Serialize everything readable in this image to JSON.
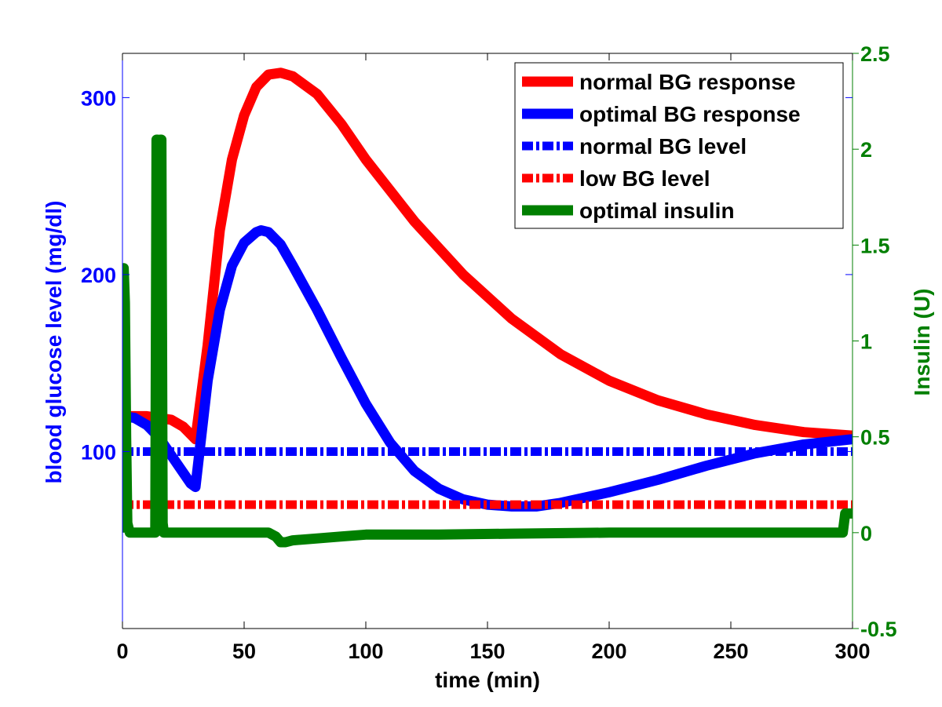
{
  "chart_data": {
    "type": "line",
    "xlabel": "time (min)",
    "ylabel_left": "blood glucose level (mg/dl)",
    "ylabel_right": "Insulin (U)",
    "xlim": [
      0,
      300
    ],
    "ylim_left": [
      0,
      325
    ],
    "ylim_right": [
      -0.5,
      2.5
    ],
    "x_ticks": [
      0,
      50,
      100,
      150,
      200,
      250,
      300
    ],
    "y_left_ticks": [
      100,
      200,
      300
    ],
    "y_right_ticks": [
      -0.5,
      0,
      0.5,
      1,
      1.5,
      2,
      2.5
    ],
    "y_right_tick_labels": [
      "-0.5",
      "0",
      "0.5",
      "1",
      "1.5",
      "2",
      "2.5"
    ],
    "grid": false,
    "legend_position": "top-right",
    "colors": {
      "left_axis": "#0000ff",
      "right_axis": "#007f00",
      "red": "#ff0000",
      "blue": "#0000ff",
      "green": "#007f00"
    },
    "series": [
      {
        "name": "normal BG response",
        "axis": "left",
        "style": "solid",
        "color": "#ff0000",
        "x": [
          0,
          10,
          20,
          25,
          30,
          35,
          40,
          45,
          50,
          55,
          60,
          65,
          70,
          80,
          90,
          100,
          120,
          140,
          160,
          180,
          200,
          220,
          240,
          260,
          280,
          300
        ],
        "y": [
          120,
          120,
          118,
          114,
          107,
          160,
          225,
          265,
          290,
          306,
          313,
          314,
          312,
          302,
          285,
          265,
          230,
          200,
          175,
          155,
          140,
          129,
          121,
          115,
          111,
          109
        ]
      },
      {
        "name": "optimal BG response",
        "axis": "left",
        "style": "solid",
        "color": "#0000ff",
        "x": [
          0,
          5,
          10,
          15,
          20,
          25,
          28,
          30,
          35,
          40,
          45,
          50,
          55,
          57,
          60,
          65,
          70,
          80,
          90,
          100,
          110,
          120,
          130,
          140,
          150,
          160,
          170,
          180,
          200,
          220,
          240,
          260,
          280,
          300
        ],
        "y": [
          120,
          119,
          115,
          108,
          98,
          88,
          82,
          80,
          140,
          180,
          205,
          218,
          224,
          225,
          224,
          217,
          205,
          180,
          153,
          127,
          105,
          89,
          79,
          73,
          70,
          69,
          69,
          71,
          77,
          84,
          92,
          99,
          104,
          107
        ]
      },
      {
        "name": "normal BG level",
        "axis": "left",
        "style": "dashdot",
        "color": "#0000ff",
        "x": [
          0,
          300
        ],
        "y": [
          100,
          100
        ]
      },
      {
        "name": "low BG level",
        "axis": "left",
        "style": "dashdot",
        "color": "#ff0000",
        "x": [
          0,
          300
        ],
        "y": [
          70,
          70
        ]
      },
      {
        "name": "optimal insulin",
        "axis": "right",
        "style": "solid",
        "color": "#007f00",
        "x": [
          0,
          0.5,
          1,
          1.5,
          2,
          3,
          5,
          10,
          13.5,
          14,
          14.5,
          15,
          15.5,
          16,
          16.5,
          17,
          25,
          40,
          60,
          63,
          65,
          67,
          70,
          80,
          90,
          100,
          130,
          160,
          200,
          250,
          296,
          297,
          298,
          300
        ],
        "y": [
          0,
          1.38,
          1.2,
          0.5,
          0.05,
          0,
          0,
          0,
          0,
          2.05,
          2.05,
          0.05,
          2.05,
          2.05,
          0.05,
          0,
          0,
          0,
          0,
          -0.02,
          -0.05,
          -0.05,
          -0.04,
          -0.03,
          -0.02,
          -0.01,
          -0.01,
          -0.005,
          0,
          0,
          0,
          0.1,
          0.1,
          0.1
        ]
      }
    ]
  }
}
